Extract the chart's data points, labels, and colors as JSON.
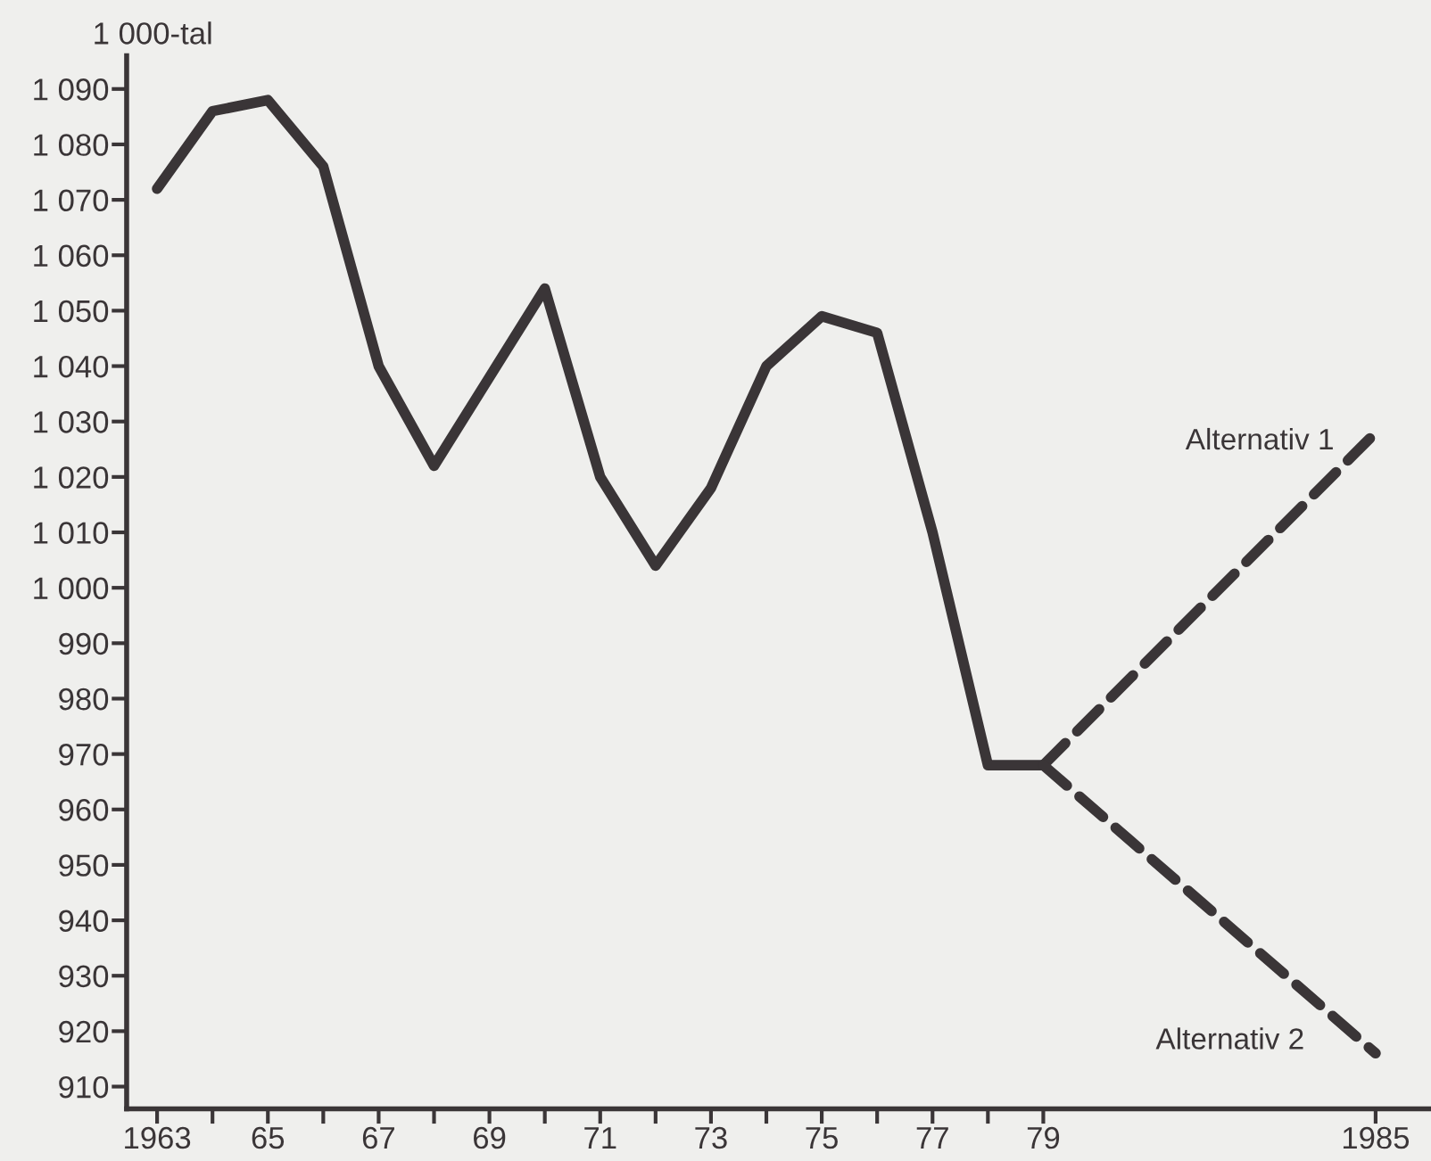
{
  "chart_data": {
    "type": "line",
    "ylabel": "1 000-tal",
    "x": [
      1963,
      1964,
      1965,
      1966,
      1967,
      1968,
      1969,
      1970,
      1971,
      1972,
      1973,
      1974,
      1975,
      1976,
      1977,
      1978,
      1979,
      1985
    ],
    "series": [
      {
        "color": "#3a3537",
        "line_style": "solid",
        "values": [
          1072,
          1086,
          1088,
          1076,
          1040,
          1022,
          1038,
          1054,
          1020,
          1004,
          1018,
          1040,
          1049,
          1046,
          1010,
          968,
          968,
          null
        ]
      },
      {
        "name": "Alternativ 1",
        "color": "#3a3537",
        "line_style": "dashed",
        "values": [
          null,
          null,
          null,
          null,
          null,
          null,
          null,
          null,
          null,
          null,
          null,
          null,
          null,
          null,
          null,
          null,
          968,
          1028
        ]
      },
      {
        "name": "Alternativ 2",
        "color": "#3a3537",
        "line_style": "dashed",
        "values": [
          null,
          null,
          null,
          null,
          null,
          null,
          null,
          null,
          null,
          null,
          null,
          null,
          null,
          null,
          null,
          null,
          968,
          916
        ]
      }
    ],
    "xlim": [
      1962.45,
      1986
    ],
    "ylim": [
      906,
      1096
    ],
    "xticks": [
      1963,
      {
        "value": 1964,
        "label": null
      },
      {
        "value": 1965,
        "label": "65"
      },
      {
        "value": 1966,
        "label": null
      },
      {
        "value": 1967,
        "label": "67"
      },
      {
        "value": 1968,
        "label": null
      },
      {
        "value": 1969,
        "label": "69"
      },
      {
        "value": 1970,
        "label": null
      },
      {
        "value": 1971,
        "label": "71"
      },
      {
        "value": 1972,
        "label": null
      },
      {
        "value": 1973,
        "label": "73"
      },
      {
        "value": 1974,
        "label": null
      },
      {
        "value": 1975,
        "label": "75"
      },
      {
        "value": 1976,
        "label": null
      },
      {
        "value": 1977,
        "label": "77"
      },
      {
        "value": 1978,
        "label": null
      },
      {
        "value": 1979,
        "label": "79"
      },
      1985
    ],
    "yticks": [
      {
        "value": 1090,
        "label": "1 090"
      },
      {
        "value": 1080,
        "label": "1 080"
      },
      {
        "value": 1070,
        "label": "1 070"
      },
      {
        "value": 1060,
        "label": "1 060"
      },
      {
        "value": 1050,
        "label": "1 050"
      },
      {
        "value": 1040,
        "label": "1 040"
      },
      {
        "value": 1030,
        "label": "1 030"
      },
      {
        "value": 1020,
        "label": "1 020"
      },
      {
        "value": 1010,
        "label": "1 010"
      },
      {
        "value": 1000,
        "label": "1 000"
      },
      990,
      980,
      970,
      960,
      950,
      940,
      930,
      920,
      910
    ],
    "grid": false,
    "legend": false,
    "marker": "none"
  }
}
